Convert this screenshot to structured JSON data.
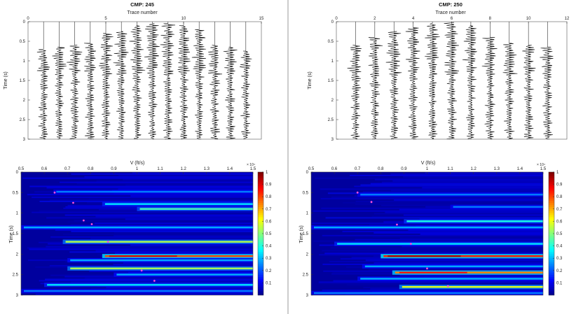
{
  "chart_data": [
    {
      "type": "line",
      "title": "CMP: 245",
      "xlabel": "Trace number",
      "ylabel": "Time (s)",
      "xlim": [
        0,
        15
      ],
      "ylim": [
        0,
        3
      ],
      "x_ticks": [
        "0",
        "5",
        "10",
        "15"
      ],
      "y_ticks": [
        "0",
        "0.5",
        "1",
        "1.5",
        "2",
        "2.5",
        "3"
      ],
      "n_traces": 14,
      "mute_times": [
        0.7,
        0.65,
        0.6,
        0.55,
        0.3,
        0.25,
        0.1,
        0.05,
        0.05,
        0.1,
        0.2,
        0.6,
        0.65,
        0.75
      ],
      "grid": false
    },
    {
      "type": "line",
      "title": "CMP: 250",
      "xlabel": "Trace number",
      "ylabel": "Time (s)",
      "xlim": [
        0,
        12
      ],
      "ylim": [
        0,
        3
      ],
      "x_ticks": [
        "0",
        "2",
        "4",
        "6",
        "8",
        "10",
        "12"
      ],
      "y_ticks": [
        "0",
        "0.5",
        "1",
        "1.5",
        "2",
        "2.5",
        "3"
      ],
      "n_traces": 11,
      "mute_times": [
        0.6,
        0.4,
        0.25,
        0.15,
        0.05,
        0.02,
        0.1,
        0.4,
        0.55,
        0.6,
        0.65
      ],
      "grid": false
    },
    {
      "type": "heatmap",
      "title": "",
      "xlabel": "V (ft/s)",
      "ylabel": "Time (s)",
      "x_exponent": "× 10⁴",
      "xlim": [
        0.5,
        1.5
      ],
      "ylim": [
        0,
        3
      ],
      "x_ticks": [
        "0.5",
        "0.6",
        "0.7",
        "0.8",
        "0.9",
        "1",
        "1.1",
        "1.2",
        "1.3",
        "1.4",
        "1.5"
      ],
      "y_ticks": [
        "0",
        "0.5",
        "1",
        "1.5",
        "2",
        "2.5",
        "3"
      ],
      "colorbar": {
        "min": 0,
        "max": 1,
        "ticks": [
          "0.1",
          "0.2",
          "0.3",
          "0.4",
          "0.5",
          "0.6",
          "0.7",
          "0.8",
          "0.9",
          "1"
        ]
      },
      "colormap": "jet",
      "events": [
        {
          "t": 0.48,
          "v_start": 0.64,
          "amp": 0.25
        },
        {
          "t": 0.78,
          "v_start": 0.85,
          "amp": 0.35
        },
        {
          "t": 0.9,
          "v_start": 1.0,
          "amp": 0.45
        },
        {
          "t": 1.35,
          "v_start": 0.5,
          "amp": 0.3
        },
        {
          "t": 1.7,
          "v_start": 0.68,
          "amp": 0.55
        },
        {
          "t": 2.05,
          "v_start": 0.85,
          "amp": 0.8
        },
        {
          "t": 2.15,
          "v_start": 0.7,
          "amp": 0.3
        },
        {
          "t": 2.35,
          "v_start": 0.7,
          "amp": 0.55
        },
        {
          "t": 2.5,
          "v_start": 0.9,
          "amp": 0.3
        },
        {
          "t": 2.75,
          "v_start": 0.6,
          "amp": 0.35
        },
        {
          "t": 2.9,
          "v_start": 0.5,
          "amp": 0.25
        }
      ],
      "picks": [
        {
          "v": 0.645,
          "t": 0.5
        },
        {
          "v": 0.725,
          "t": 0.75
        },
        {
          "v": 0.77,
          "t": 1.18
        },
        {
          "v": 0.805,
          "t": 1.27
        },
        {
          "v": 0.875,
          "t": 1.7
        },
        {
          "v": 1.02,
          "t": 2.4
        },
        {
          "v": 1.075,
          "t": 2.65
        }
      ]
    },
    {
      "type": "heatmap",
      "title": "",
      "xlabel": "V (ft/s)",
      "ylabel": "Time (s)",
      "x_exponent": "× 10⁴",
      "xlim": [
        0.5,
        1.5
      ],
      "ylim": [
        0,
        3
      ],
      "x_ticks": [
        "0.5",
        "0.6",
        "0.7",
        "0.8",
        "0.9",
        "1",
        "1.1",
        "1.2",
        "1.3",
        "1.4",
        "1.5"
      ],
      "y_ticks": [
        "0",
        "0.5",
        "1",
        "1.5",
        "2",
        "2.5",
        "3"
      ],
      "colorbar": {
        "min": 0,
        "max": 1,
        "ticks": [
          "0.1",
          "0.2",
          "0.3",
          "0.4",
          "0.5",
          "0.6",
          "0.7",
          "0.8",
          "0.9",
          "1"
        ]
      },
      "colormap": "jet",
      "events": [
        {
          "t": 0.55,
          "v_start": 0.7,
          "amp": 0.25
        },
        {
          "t": 0.85,
          "v_start": 1.1,
          "amp": 0.25
        },
        {
          "t": 1.2,
          "v_start": 0.9,
          "amp": 0.4
        },
        {
          "t": 1.35,
          "v_start": 0.5,
          "amp": 0.3
        },
        {
          "t": 1.75,
          "v_start": 0.6,
          "amp": 0.35
        },
        {
          "t": 2.05,
          "v_start": 0.8,
          "amp": 0.85
        },
        {
          "t": 2.3,
          "v_start": 0.72,
          "amp": 0.3
        },
        {
          "t": 2.45,
          "v_start": 0.85,
          "amp": 0.75
        },
        {
          "t": 2.6,
          "v_start": 0.7,
          "amp": 0.3
        },
        {
          "t": 2.8,
          "v_start": 0.88,
          "amp": 0.6
        },
        {
          "t": 2.95,
          "v_start": 0.5,
          "amp": 0.25
        }
      ],
      "picks": [
        {
          "v": 0.7,
          "t": 0.5
        },
        {
          "v": 0.76,
          "t": 0.73
        },
        {
          "v": 0.87,
          "t": 1.28
        },
        {
          "v": 0.93,
          "t": 1.75
        },
        {
          "v": 1.0,
          "t": 2.35
        },
        {
          "v": 1.09,
          "t": 2.78
        }
      ]
    }
  ]
}
